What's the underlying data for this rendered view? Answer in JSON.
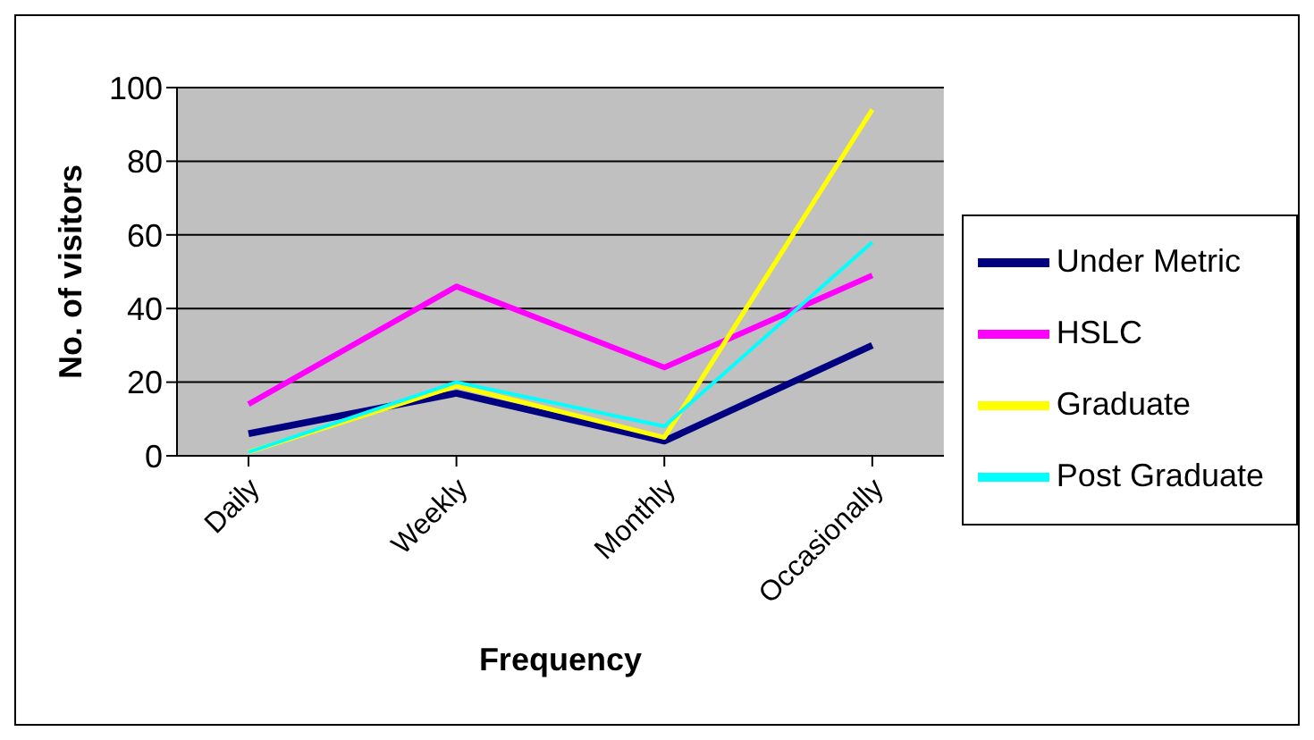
{
  "chart_data": {
    "type": "line",
    "xlabel": "Frequency",
    "ylabel": "No. of visitors",
    "categories": [
      "Daily",
      "Weekly",
      "Monthly",
      "Occasionally"
    ],
    "series": [
      {
        "name": "Under Metric",
        "color": "#000080",
        "values": [
          6,
          17,
          4,
          30
        ]
      },
      {
        "name": "HSLC",
        "color": "#ff00ff",
        "values": [
          14,
          46,
          24,
          49
        ]
      },
      {
        "name": "Graduate",
        "color": "#ffff00",
        "values": [
          1,
          19,
          5,
          94
        ]
      },
      {
        "name": "Post Graduate",
        "color": "#00ffff",
        "values": [
          1,
          20,
          8,
          58
        ]
      }
    ],
    "ylim": [
      0,
      100
    ],
    "yticks": [
      0,
      20,
      40,
      60,
      80,
      100
    ],
    "grid": "y",
    "legend": "right",
    "marker": "none",
    "line_style": "solid"
  }
}
